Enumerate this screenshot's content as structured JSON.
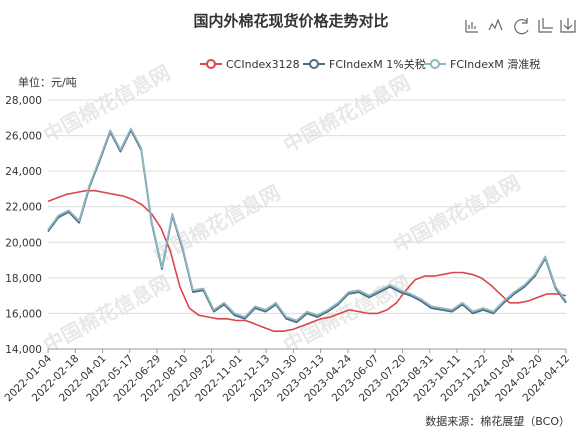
{
  "title": "国内外棉花现货价格走势对比",
  "unit_label": "单位：元/吨",
  "source": "数据来源：棉花展望（BCO）",
  "watermark": "中国棉花信息网",
  "toolbox": [
    "data-view-icon",
    "line-chart-icon",
    "bar-chart-icon",
    "restore-icon",
    "save-image-icon"
  ],
  "chart_data": {
    "type": "line",
    "title": "国内外棉花现货价格走势对比",
    "ylabel": "单位：元/吨",
    "ylim": [
      14000,
      28000
    ],
    "yticks": [
      "14,000",
      "16,000",
      "18,000",
      "20,000",
      "22,000",
      "24,000",
      "26,000",
      "28,000"
    ],
    "xticks": [
      "2022-01-04",
      "2022-02-18",
      "2022-04-01",
      "2022-05-17",
      "2022-06-29",
      "2022-08-10",
      "2022-09-22",
      "2022-11-01",
      "2022-12-13",
      "2023-01-30",
      "2023-03-13",
      "2023-04-24",
      "2023-06-07",
      "2023-07-20",
      "2023-08-31",
      "2023-10-11",
      "2023-11-22",
      "2024-01-04",
      "2024-02-20",
      "2024-04-12"
    ],
    "legend_position": "top-right",
    "grid": true,
    "series": [
      {
        "name": "CCIndex3128",
        "color": "#d9474c",
        "values": [
          22300,
          22500,
          22700,
          22800,
          22900,
          22900,
          22800,
          22700,
          22600,
          22400,
          22100,
          21600,
          20800,
          19500,
          17500,
          16300,
          15900,
          15800,
          15700,
          15700,
          15600,
          15600,
          15400,
          15200,
          15000,
          15000,
          15100,
          15300,
          15500,
          15700,
          15800,
          16000,
          16200,
          16100,
          16000,
          16000,
          16200,
          16600,
          17300,
          17900,
          18100,
          18100,
          18200,
          18300,
          18300,
          18200,
          18000,
          17600,
          17100,
          16600,
          16600,
          16700,
          16900,
          17100,
          17100,
          17000
        ]
      },
      {
        "name": "FCIndexM 1%关税",
        "color": "#4a6e7f",
        "values": [
          20600,
          21400,
          21700,
          21100,
          23100,
          24600,
          26200,
          25100,
          26300,
          25200,
          21100,
          18500,
          21500,
          19600,
          17200,
          17300,
          16100,
          16500,
          15900,
          15700,
          16300,
          16100,
          16500,
          15700,
          15500,
          16000,
          15800,
          16100,
          16500,
          17100,
          17200,
          16900,
          17200,
          17500,
          17200,
          17000,
          16700,
          16300,
          16200,
          16100,
          16500,
          16000,
          16200,
          16000,
          16600,
          17100,
          17500,
          18100,
          19100,
          17400,
          16600
        ]
      },
      {
        "name": "FCIndexM 滑准税",
        "color": "#8fb8c2",
        "values": [
          20700,
          21500,
          21800,
          21200,
          23200,
          24700,
          26300,
          25200,
          26400,
          25300,
          21200,
          18600,
          21600,
          19700,
          17300,
          17400,
          16200,
          16600,
          16000,
          15800,
          16400,
          16200,
          16600,
          15800,
          15600,
          16100,
          15900,
          16200,
          16600,
          17200,
          17300,
          17000,
          17300,
          17600,
          17300,
          17100,
          16800,
          16400,
          16300,
          16200,
          16600,
          16100,
          16300,
          16100,
          16700,
          17200,
          17600,
          18200,
          19200,
          17500,
          16700
        ]
      }
    ]
  }
}
